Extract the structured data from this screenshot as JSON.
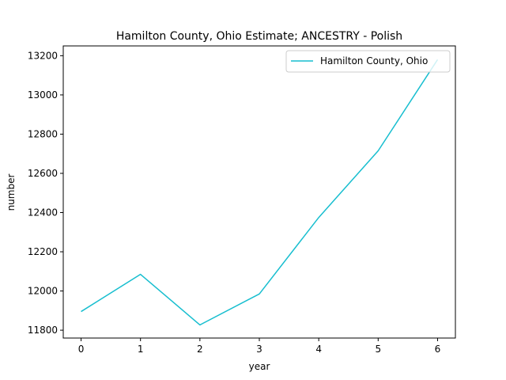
{
  "chart_data": {
    "type": "line",
    "title": "Hamilton County, Ohio Estimate; ANCESTRY - Polish",
    "xlabel": "year",
    "ylabel": "number",
    "x": [
      0,
      1,
      2,
      3,
      4,
      5,
      6
    ],
    "series": [
      {
        "name": "Hamilton County, Ohio",
        "color": "#17becf",
        "values": [
          11895,
          12085,
          11827,
          11985,
          12375,
          12715,
          13180
        ]
      }
    ],
    "xlim": [
      -0.3,
      6.3
    ],
    "ylim": [
      11760,
      13250
    ],
    "xticks": [
      "0",
      "1",
      "2",
      "3",
      "4",
      "5",
      "6"
    ],
    "yticks": [
      "11800",
      "12000",
      "12200",
      "12400",
      "12600",
      "12800",
      "13000",
      "13200"
    ],
    "legend_position": "top-right",
    "grid": false
  }
}
